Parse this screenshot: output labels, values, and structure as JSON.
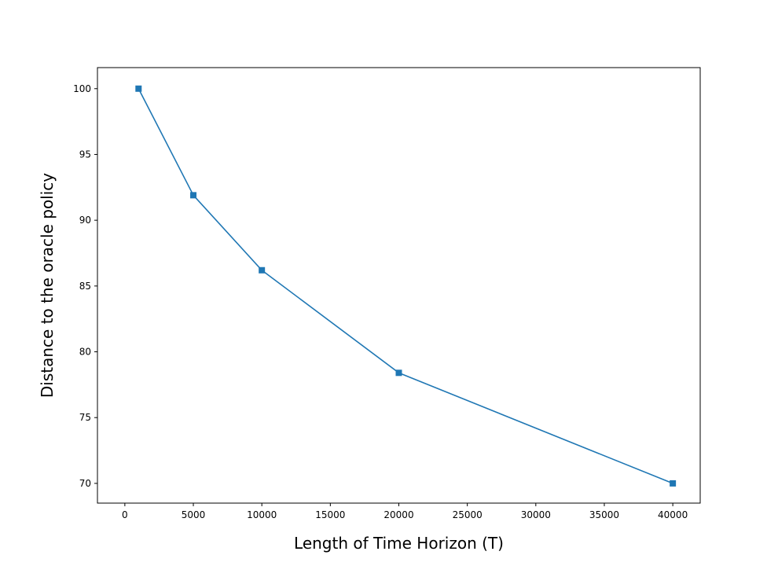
{
  "chart_data": {
    "type": "line",
    "title": "",
    "xlabel": "Length of Time Horizon (T)",
    "ylabel": "Distance to the oracle policy",
    "xlim": [
      -2000,
      42000
    ],
    "ylim": [
      68.5,
      101.6
    ],
    "xticks": [
      0,
      5000,
      10000,
      15000,
      20000,
      25000,
      30000,
      35000,
      40000
    ],
    "yticks": [
      70,
      75,
      80,
      85,
      90,
      95,
      100
    ],
    "grid": false,
    "legend": "none",
    "series": [
      {
        "color": "#1f77b4",
        "marker": "square",
        "x": [
          1000,
          5000,
          10000,
          20000,
          40000
        ],
        "y": [
          100.0,
          91.9,
          86.2,
          78.4,
          70.0
        ]
      }
    ]
  }
}
